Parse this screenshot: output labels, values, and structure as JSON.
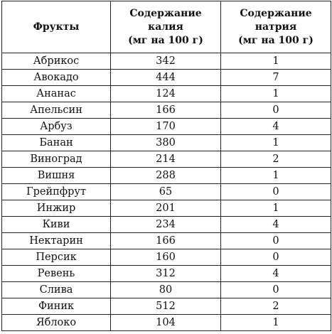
{
  "table": {
    "headers": {
      "fruit": "Фрукты",
      "potassium_line1": "Содержание",
      "potassium_line2": "калия",
      "potassium_line3": "(мг на 100 г)",
      "sodium_line1": "Содержание",
      "sodium_line2": "натрия",
      "sodium_line3": "(мг на 100 г)"
    },
    "rows": [
      {
        "fruit": "Абрикос",
        "potassium": "342",
        "sodium": "1"
      },
      {
        "fruit": "Авокадо",
        "potassium": "444",
        "sodium": "7"
      },
      {
        "fruit": "Ананас",
        "potassium": "124",
        "sodium": "1"
      },
      {
        "fruit": "Апельсин",
        "potassium": "166",
        "sodium": "0"
      },
      {
        "fruit": "Арбуз",
        "potassium": "170",
        "sodium": "4"
      },
      {
        "fruit": "Банан",
        "potassium": "380",
        "sodium": "1"
      },
      {
        "fruit": "Виноград",
        "potassium": "214",
        "sodium": "2"
      },
      {
        "fruit": "Вишня",
        "potassium": "288",
        "sodium": "1"
      },
      {
        "fruit": "Грейпфрут",
        "potassium": "65",
        "sodium": "0"
      },
      {
        "fruit": "Инжир",
        "potassium": "201",
        "sodium": "1"
      },
      {
        "fruit": "Киви",
        "potassium": "234",
        "sodium": "4"
      },
      {
        "fruit": "Нектарин",
        "potassium": "166",
        "sodium": "0"
      },
      {
        "fruit": "Персик",
        "potassium": "160",
        "sodium": "0"
      },
      {
        "fruit": "Ревень",
        "potassium": "312",
        "sodium": "4"
      },
      {
        "fruit": "Слива",
        "potassium": "80",
        "sodium": "0"
      },
      {
        "fruit": "Финик",
        "potassium": "512",
        "sodium": "2"
      },
      {
        "fruit": "Яблоко",
        "potassium": "104",
        "sodium": "1"
      }
    ]
  }
}
